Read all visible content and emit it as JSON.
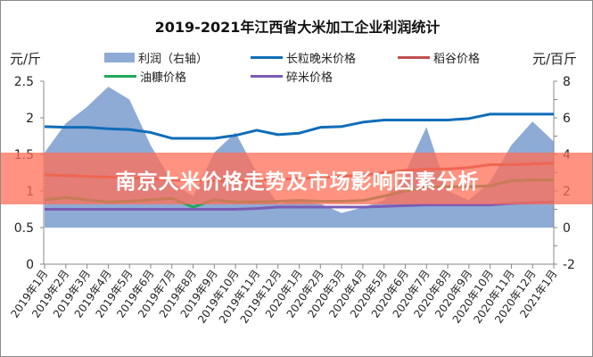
{
  "chart_data": {
    "type": "line+area",
    "title": "2019-2021年江西省大米加工企业利润统计",
    "ylabel_left": "元/斤",
    "ylabel_right": "元/百斤",
    "ylim_left": [
      0,
      2.5
    ],
    "yticks_left": [
      "0",
      "0.5",
      "1",
      "1.5",
      "2",
      "2.5"
    ],
    "ylim_right": [
      -2,
      8
    ],
    "yticks_right": [
      "-2",
      "0",
      "2",
      "4",
      "6",
      "8"
    ],
    "legend_position": "top",
    "categories": [
      "2019年1月",
      "2019年2月",
      "2019年3月",
      "2019年4月",
      "2019年5月",
      "2019年6月",
      "2019年7月",
      "2019年8月",
      "2019年9月",
      "2019年10月",
      "2019年11月",
      "2019年12月",
      "2020年1月",
      "2020年2月",
      "2020年3月",
      "2020年4月",
      "2020年5月",
      "2020年6月",
      "2020年7月",
      "2020年8月",
      "2020年9月",
      "2020年10月",
      "2020年11月",
      "2020年12月",
      "2021年1月"
    ],
    "series": [
      {
        "name": "利润（右轴）",
        "type": "area",
        "axis": "right",
        "color": "#8eabd5",
        "values": [
          4.1,
          5.7,
          6.6,
          7.7,
          7.0,
          4.5,
          2.5,
          1.7,
          4.1,
          5.2,
          3.0,
          1.3,
          1.5,
          1.3,
          0.8,
          1.1,
          1.5,
          3.0,
          5.5,
          2.0,
          1.5,
          2.5,
          4.5,
          5.8,
          4.7
        ]
      },
      {
        "name": "长粒晚米价格",
        "type": "line",
        "axis": "left",
        "color": "#0f6db8",
        "values": [
          1.88,
          1.87,
          1.87,
          1.85,
          1.84,
          1.8,
          1.72,
          1.72,
          1.72,
          1.76,
          1.83,
          1.77,
          1.79,
          1.87,
          1.88,
          1.94,
          1.97,
          1.97,
          1.97,
          1.97,
          1.99,
          2.05,
          2.05,
          2.05,
          2.05
        ]
      },
      {
        "name": "稻谷价格",
        "type": "line",
        "axis": "left",
        "color": "#c0504d",
        "values": [
          1.22,
          1.21,
          1.2,
          1.19,
          1.18,
          1.17,
          1.15,
          1.14,
          1.14,
          1.14,
          1.15,
          1.16,
          1.17,
          1.18,
          1.2,
          1.22,
          1.25,
          1.28,
          1.3,
          1.3,
          1.32,
          1.36,
          1.36,
          1.37,
          1.38
        ]
      },
      {
        "name": "油糠价格",
        "type": "line",
        "axis": "left",
        "color": "#22a75a",
        "values": [
          0.88,
          0.91,
          0.88,
          0.85,
          0.86,
          0.88,
          0.9,
          0.78,
          0.88,
          0.85,
          0.85,
          0.86,
          0.87,
          0.86,
          0.86,
          0.87,
          0.93,
          1.0,
          1.05,
          1.06,
          1.06,
          1.07,
          1.14,
          1.15,
          1.15
        ]
      },
      {
        "name": "碎米价格",
        "type": "line",
        "axis": "left",
        "color": "#7a5cb5",
        "values": [
          0.75,
          0.75,
          0.75,
          0.75,
          0.75,
          0.75,
          0.75,
          0.75,
          0.75,
          0.75,
          0.76,
          0.78,
          0.78,
          0.78,
          0.78,
          0.78,
          0.79,
          0.8,
          0.81,
          0.81,
          0.81,
          0.81,
          0.83,
          0.84,
          0.85
        ]
      }
    ]
  },
  "banner": {
    "text": "南京大米价格走势及市场影响因素分析",
    "color": "#ff6e55"
  }
}
